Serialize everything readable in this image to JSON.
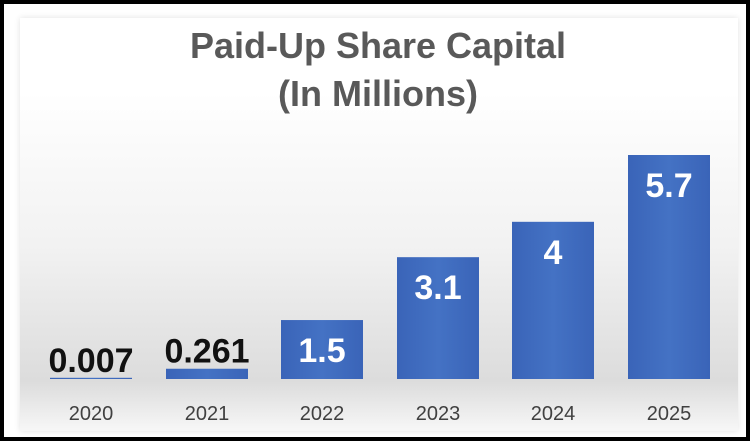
{
  "chart_data": {
    "type": "bar",
    "title": "Paid-Up Share Capital",
    "subtitle": "(In Millions)",
    "categories": [
      "2020",
      "2021",
      "2022",
      "2023",
      "2024",
      "2025"
    ],
    "values": [
      0.007,
      0.261,
      1.5,
      3.1,
      4,
      5.7
    ],
    "data_labels": [
      "0.007",
      "0.261",
      "1.5",
      "3.1",
      "4",
      "5.7"
    ],
    "xlabel": "",
    "ylabel": "",
    "ylim": [
      0,
      5.7
    ],
    "grid": false,
    "legend": "none",
    "colors": {
      "bar": "#4472C4",
      "bar_dark": "#2F56A8"
    }
  }
}
